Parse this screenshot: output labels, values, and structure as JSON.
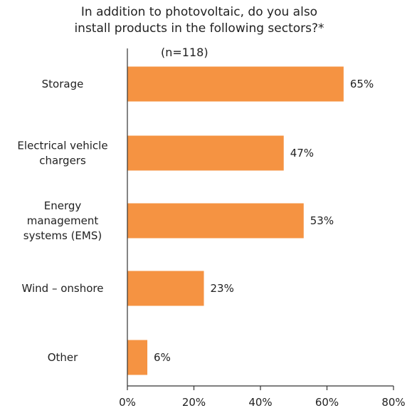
{
  "chart_data": {
    "type": "bar",
    "orientation": "horizontal",
    "title_lines": [
      "In addition to photovoltaic, do you also",
      "install products in the following sectors?*"
    ],
    "subtitle": "(n=118)",
    "categories": [
      [
        "Storage"
      ],
      [
        "Electrical vehicle",
        "chargers"
      ],
      [
        "Energy",
        "management",
        "systems (EMS)"
      ],
      [
        "Wind – onshore"
      ],
      [
        "Other"
      ]
    ],
    "values": [
      65,
      47,
      53,
      23,
      6
    ],
    "value_labels": [
      "65%",
      "47%",
      "53%",
      "23%",
      "6%"
    ],
    "xlim": [
      0,
      80
    ],
    "xticks": [
      "0%",
      "20%",
      "40%",
      "60%",
      "80%"
    ],
    "bar_color": "#f59342",
    "grid": false,
    "legend": "none"
  }
}
